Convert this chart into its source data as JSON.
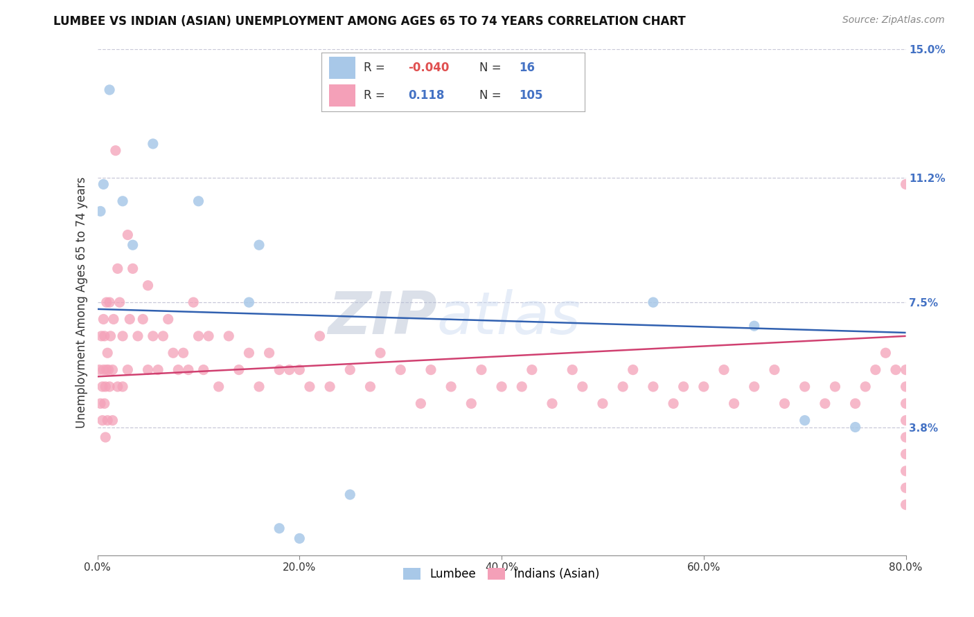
{
  "title": "LUMBEE VS INDIAN (ASIAN) UNEMPLOYMENT AMONG AGES 65 TO 74 YEARS CORRELATION CHART",
  "source": "Source: ZipAtlas.com",
  "ylabel": "Unemployment Among Ages 65 to 74 years",
  "xlim": [
    0,
    80
  ],
  "ylim": [
    0,
    15
  ],
  "ytick_values": [
    3.8,
    7.5,
    11.2,
    15.0
  ],
  "ytick_labels": [
    "3.8%",
    "7.5%",
    "11.2%",
    "15.0%"
  ],
  "xtick_values": [
    0,
    20,
    40,
    60,
    80
  ],
  "xtick_labels": [
    "0.0%",
    "20.0%",
    "40.0%",
    "60.0%",
    "80.0%"
  ],
  "lumbee_color": "#a8c8e8",
  "indian_color": "#f4a0b8",
  "trend_lumbee_color": "#3060b0",
  "trend_indian_color": "#d04070",
  "background_color": "#ffffff",
  "grid_color": "#c8c8d8",
  "watermark_color": "#d0daea",
  "lumbee_x": [
    0.3,
    0.6,
    1.2,
    2.5,
    3.5,
    5.5,
    10.0,
    15.0,
    16.0,
    18.0,
    20.0,
    25.0,
    55.0,
    65.0,
    70.0,
    75.0
  ],
  "lumbee_y": [
    10.2,
    11.0,
    13.8,
    10.5,
    9.2,
    12.2,
    10.5,
    7.5,
    9.2,
    0.8,
    0.5,
    1.8,
    7.5,
    6.8,
    4.0,
    3.8
  ],
  "indian_x": [
    0.2,
    0.3,
    0.4,
    0.5,
    0.5,
    0.6,
    0.6,
    0.7,
    0.7,
    0.8,
    0.8,
    0.9,
    0.9,
    1.0,
    1.0,
    1.1,
    1.2,
    1.2,
    1.3,
    1.5,
    1.5,
    1.6,
    1.8,
    2.0,
    2.0,
    2.2,
    2.5,
    2.5,
    3.0,
    3.0,
    3.2,
    3.5,
    4.0,
    4.5,
    5.0,
    5.0,
    5.5,
    6.0,
    6.5,
    7.0,
    7.5,
    8.0,
    8.5,
    9.0,
    9.5,
    10.0,
    10.5,
    11.0,
    12.0,
    13.0,
    14.0,
    15.0,
    16.0,
    17.0,
    18.0,
    19.0,
    20.0,
    21.0,
    22.0,
    23.0,
    25.0,
    27.0,
    28.0,
    30.0,
    32.0,
    33.0,
    35.0,
    37.0,
    38.0,
    40.0,
    42.0,
    43.0,
    45.0,
    47.0,
    48.0,
    50.0,
    52.0,
    53.0,
    55.0,
    57.0,
    58.0,
    60.0,
    62.0,
    63.0,
    65.0,
    67.0,
    68.0,
    70.0,
    72.0,
    73.0,
    75.0,
    76.0,
    77.0,
    78.0,
    79.0,
    80.0,
    80.0,
    80.0,
    80.0,
    80.0,
    80.0,
    80.0,
    80.0,
    80.0,
    80.0
  ],
  "indian_y": [
    5.5,
    4.5,
    6.5,
    5.0,
    4.0,
    7.0,
    5.5,
    6.5,
    4.5,
    5.0,
    3.5,
    7.5,
    5.5,
    6.0,
    4.0,
    5.5,
    7.5,
    5.0,
    6.5,
    5.5,
    4.0,
    7.0,
    12.0,
    8.5,
    5.0,
    7.5,
    6.5,
    5.0,
    9.5,
    5.5,
    7.0,
    8.5,
    6.5,
    7.0,
    5.5,
    8.0,
    6.5,
    5.5,
    6.5,
    7.0,
    6.0,
    5.5,
    6.0,
    5.5,
    7.5,
    6.5,
    5.5,
    6.5,
    5.0,
    6.5,
    5.5,
    6.0,
    5.0,
    6.0,
    5.5,
    5.5,
    5.5,
    5.0,
    6.5,
    5.0,
    5.5,
    5.0,
    6.0,
    5.5,
    4.5,
    5.5,
    5.0,
    4.5,
    5.5,
    5.0,
    5.0,
    5.5,
    4.5,
    5.5,
    5.0,
    4.5,
    5.0,
    5.5,
    5.0,
    4.5,
    5.0,
    5.0,
    5.5,
    4.5,
    5.0,
    5.5,
    4.5,
    5.0,
    4.5,
    5.0,
    4.5,
    5.0,
    5.5,
    6.0,
    5.5,
    11.0,
    5.5,
    5.0,
    4.5,
    4.0,
    3.5,
    3.0,
    2.5,
    2.0,
    1.5
  ],
  "lumbee_trend_x0": 0,
  "lumbee_trend_y0": 7.3,
  "lumbee_trend_x1": 80,
  "lumbee_trend_y1": 6.6,
  "indian_trend_x0": 0,
  "indian_trend_y0": 5.3,
  "indian_trend_x1": 80,
  "indian_trend_y1": 6.5
}
